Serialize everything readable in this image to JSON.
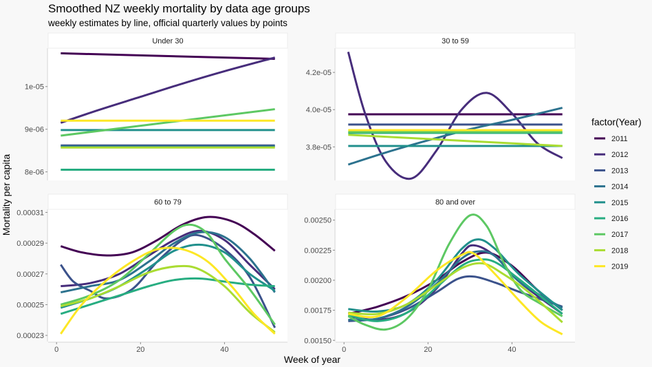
{
  "chart_data": {
    "type": "line",
    "title": "Smoothed NZ weekly mortality by data age groups",
    "subtitle": "weekly estimates by line, official quarterly values by points",
    "xlabel": "Week of year",
    "ylabel": "Mortality per capita",
    "legend_title": "factor(Year)",
    "legend_position": "right",
    "grid": false,
    "x_ticks": [
      0,
      20,
      40
    ],
    "xlim": [
      -2,
      55
    ],
    "series_names": [
      "2011",
      "2012",
      "2013",
      "2014",
      "2015",
      "2016",
      "2017",
      "2018",
      "2019"
    ],
    "colors": [
      "#440154",
      "#472D7B",
      "#3B528B",
      "#2C728E",
      "#21908C",
      "#27AD81",
      "#5DC863",
      "#AADC32",
      "#FDE725"
    ],
    "panels": [
      {
        "name": "Under 30",
        "ylim": [
          7.8e-06,
          1.09e-05
        ],
        "y_ticks": [
          8e-06,
          9e-06,
          1e-05
        ],
        "y_tick_labels": [
          "8e-06",
          "9e-06",
          "1e-05"
        ],
        "x_axis": false,
        "series": [
          {
            "name": "2011",
            "x": [
              1,
              52
            ],
            "y": [
              1.078e-05,
              1.065e-05
            ]
          },
          {
            "name": "2012",
            "x": [
              1,
              10,
              20,
              30,
              40,
              52
            ],
            "y": [
              9.15e-06,
              9.45e-06,
              9.76e-06,
              1.007e-05,
              1.036e-05,
              1.068e-05
            ]
          },
          {
            "name": "2013",
            "x": [
              1,
              52
            ],
            "y": [
              8.62e-06,
              8.62e-06
            ]
          },
          {
            "name": "2014",
            "x": [
              1,
              52
            ],
            "y": [
              8.6e-06,
              8.6e-06
            ]
          },
          {
            "name": "2015",
            "x": [
              1,
              52
            ],
            "y": [
              8.98e-06,
              8.98e-06
            ]
          },
          {
            "name": "2016",
            "x": [
              1,
              52
            ],
            "y": [
              8.05e-06,
              8.05e-06
            ]
          },
          {
            "name": "2017",
            "x": [
              1,
              52
            ],
            "y": [
              8.85e-06,
              9.47e-06
            ]
          },
          {
            "name": "2018",
            "x": [
              1,
              52
            ],
            "y": [
              8.57e-06,
              8.57e-06
            ]
          },
          {
            "name": "2019",
            "x": [
              1,
              52
            ],
            "y": [
              9.2e-06,
              9.2e-06
            ]
          }
        ]
      },
      {
        "name": "30 to 59",
        "ylim": [
          3.62e-05,
          4.33e-05
        ],
        "y_ticks": [
          3.8e-05,
          4e-05,
          4.2e-05
        ],
        "y_tick_labels": [
          "3.8e-05",
          "4.0e-05",
          "4.2e-05"
        ],
        "x_axis": false,
        "series": [
          {
            "name": "2011",
            "x": [
              1,
              52
            ],
            "y": [
              3.975e-05,
              3.975e-05
            ]
          },
          {
            "name": "2012",
            "x": [
              1,
              5,
              10,
              16,
              22,
              28,
              34,
              40,
              46,
              52
            ],
            "y": [
              4.31e-05,
              3.98e-05,
              3.72e-05,
              3.63e-05,
              3.78e-05,
              4e-05,
              4.09e-05,
              3.98e-05,
              3.82e-05,
              3.74e-05
            ]
          },
          {
            "name": "2013",
            "x": [
              1,
              52
            ],
            "y": [
              3.92e-05,
              3.92e-05
            ]
          },
          {
            "name": "2014",
            "x": [
              1,
              10,
              20,
              30,
              40,
              52
            ],
            "y": [
              3.705e-05,
              3.77e-05,
              3.835e-05,
              3.895e-05,
              3.945e-05,
              4.01e-05
            ]
          },
          {
            "name": "2015",
            "x": [
              1,
              52
            ],
            "y": [
              3.805e-05,
              3.805e-05
            ]
          },
          {
            "name": "2016",
            "x": [
              1,
              52
            ],
            "y": [
              3.875e-05,
              3.875e-05
            ]
          },
          {
            "name": "2017",
            "x": [
              1,
              52
            ],
            "y": [
              3.88e-05,
              3.88e-05
            ]
          },
          {
            "name": "2018",
            "x": [
              1,
              52
            ],
            "y": [
              3.865e-05,
              3.805e-05
            ]
          },
          {
            "name": "2019",
            "x": [
              1,
              52
            ],
            "y": [
              3.89e-05,
              3.89e-05
            ]
          }
        ]
      },
      {
        "name": "60 to 79",
        "ylim": [
          0.000226,
          0.000312
        ],
        "y_ticks": [
          0.00023,
          0.00025,
          0.00027,
          0.00029,
          0.00031
        ],
        "y_tick_labels": [
          "0.00023",
          "0.00025",
          "0.00027",
          "0.00029",
          "0.00031"
        ],
        "x_axis": true,
        "series": [
          {
            "name": "2011",
            "x": [
              1,
              6,
              12,
              18,
              24,
              30,
              36,
              42,
              47,
              52
            ],
            "y": [
              0.000288,
              0.000284,
              0.000282,
              0.000284,
              0.000292,
              0.000302,
              0.000307,
              0.000304,
              0.000296,
              0.000285
            ]
          },
          {
            "name": "2012",
            "x": [
              1,
              8,
              15,
              22,
              28,
              34,
              40,
              46,
              52
            ],
            "y": [
              0.000262,
              0.000264,
              0.00027,
              0.000282,
              0.000292,
              0.000298,
              0.000292,
              0.000276,
              0.00026
            ]
          },
          {
            "name": "2013",
            "x": [
              1,
              4,
              8,
              12,
              18,
              24,
              30,
              34,
              40,
              46,
              52
            ],
            "y": [
              0.000276,
              0.000265,
              0.000259,
              0.000254,
              0.00026,
              0.000278,
              0.000292,
              0.000295,
              0.000286,
              0.000268,
              0.000235
            ]
          },
          {
            "name": "2014",
            "x": [
              1,
              8,
              15,
              22,
              28,
              34,
              40,
              46,
              52
            ],
            "y": [
              0.000258,
              0.000262,
              0.000266,
              0.000278,
              0.00029,
              0.000297,
              0.000294,
              0.00028,
              0.000258
            ]
          },
          {
            "name": "2015",
            "x": [
              1,
              8,
              15,
              22,
              28,
              34,
              40,
              46,
              52
            ],
            "y": [
              0.000248,
              0.000254,
              0.000262,
              0.000274,
              0.000285,
              0.000289,
              0.000284,
              0.00027,
              0.000259
            ]
          },
          {
            "name": "2016",
            "x": [
              1,
              8,
              15,
              22,
              28,
              34,
              40,
              46,
              52
            ],
            "y": [
              0.000244,
              0.00025,
              0.000256,
              0.000262,
              0.000266,
              0.000267,
              0.000265,
              0.000263,
              0.000262
            ]
          },
          {
            "name": "2017",
            "x": [
              1,
              8,
              15,
              22,
              28,
              32,
              36,
              40,
              46,
              52
            ],
            "y": [
              0.00025,
              0.000256,
              0.000266,
              0.000283,
              0.000298,
              0.000302,
              0.000296,
              0.00028,
              0.00026,
              0.000237
            ]
          },
          {
            "name": "2018",
            "x": [
              1,
              8,
              15,
              22,
              29,
              34,
              40,
              46,
              52
            ],
            "y": [
              0.000249,
              0.000254,
              0.000262,
              0.000271,
              0.000275,
              0.000273,
              0.000262,
              0.000245,
              0.000232
            ]
          },
          {
            "name": "2019",
            "x": [
              1,
              6,
              12,
              18,
              24,
              30,
              36,
              42,
              47,
              52
            ],
            "y": [
              0.000231,
              0.00025,
              0.000266,
              0.000278,
              0.000286,
              0.000286,
              0.000278,
              0.000261,
              0.000244,
              0.000231
            ]
          }
        ]
      },
      {
        "name": "80 and over",
        "ylim": [
          0.00149,
          0.00259
        ],
        "y_ticks": [
          0.0015,
          0.00175,
          0.002,
          0.00225,
          0.0025
        ],
        "y_tick_labels": [
          "0.00150",
          "0.00175",
          "0.00200",
          "0.00225",
          "0.00250"
        ],
        "x_axis": true,
        "series": [
          {
            "name": "2011",
            "x": [
              1,
              8,
              15,
              22,
              28,
              34,
              40,
              46,
              52
            ],
            "y": [
              0.00172,
              0.00178,
              0.00187,
              0.002,
              0.00215,
              0.00223,
              0.00212,
              0.00192,
              0.00175
            ]
          },
          {
            "name": "2012",
            "x": [
              1,
              8,
              15,
              22,
              28,
              31,
              36,
              42,
              52
            ],
            "y": [
              0.0017,
              0.00167,
              0.00173,
              0.00193,
              0.00222,
              0.00229,
              0.0022,
              0.00198,
              0.00172
            ]
          },
          {
            "name": "2013",
            "x": [
              1,
              8,
              15,
              22,
              27,
              31,
              36,
              42,
              52
            ],
            "y": [
              0.00166,
              0.00168,
              0.00176,
              0.0019,
              0.00201,
              0.00203,
              0.00198,
              0.0019,
              0.00178
            ]
          },
          {
            "name": "2014",
            "x": [
              1,
              8,
              15,
              22,
              28,
              32,
              36,
              42,
              52
            ],
            "y": [
              0.00167,
              0.00168,
              0.00178,
              0.00197,
              0.00218,
              0.00224,
              0.0022,
              0.00198,
              0.00177
            ]
          },
          {
            "name": "2015",
            "x": [
              1,
              8,
              15,
              22,
              28,
              32,
              36,
              42,
              52
            ],
            "y": [
              0.00176,
              0.00174,
              0.0018,
              0.002,
              0.00226,
              0.00234,
              0.00226,
              0.00204,
              0.00175
            ]
          },
          {
            "name": "2016",
            "x": [
              1,
              8,
              15,
              22,
              28,
              32,
              36,
              42,
              52
            ],
            "y": [
              0.00171,
              0.00166,
              0.00173,
              0.00194,
              0.00212,
              0.00217,
              0.00215,
              0.002,
              0.00172
            ]
          },
          {
            "name": "2017",
            "x": [
              1,
              5,
              10,
              15,
              20,
              25,
              30,
              34,
              38,
              42,
              47,
              52
            ],
            "y": [
              0.0017,
              0.00163,
              0.00159,
              0.00168,
              0.00192,
              0.0023,
              0.00254,
              0.00245,
              0.00215,
              0.00192,
              0.0018,
              0.0017
            ]
          },
          {
            "name": "2018",
            "x": [
              1,
              8,
              15,
              22,
              28,
              33,
              38,
              44,
              52
            ],
            "y": [
              0.00173,
              0.00172,
              0.0018,
              0.00196,
              0.0021,
              0.00214,
              0.00205,
              0.0019,
              0.00165
            ]
          },
          {
            "name": "2019",
            "x": [
              1,
              8,
              15,
              22,
              28,
              31,
              36,
              42,
              47,
              52
            ],
            "y": [
              0.00172,
              0.0017,
              0.00186,
              0.00208,
              0.00221,
              0.00222,
              0.00205,
              0.00182,
              0.00165,
              0.00155
            ]
          }
        ]
      }
    ]
  }
}
